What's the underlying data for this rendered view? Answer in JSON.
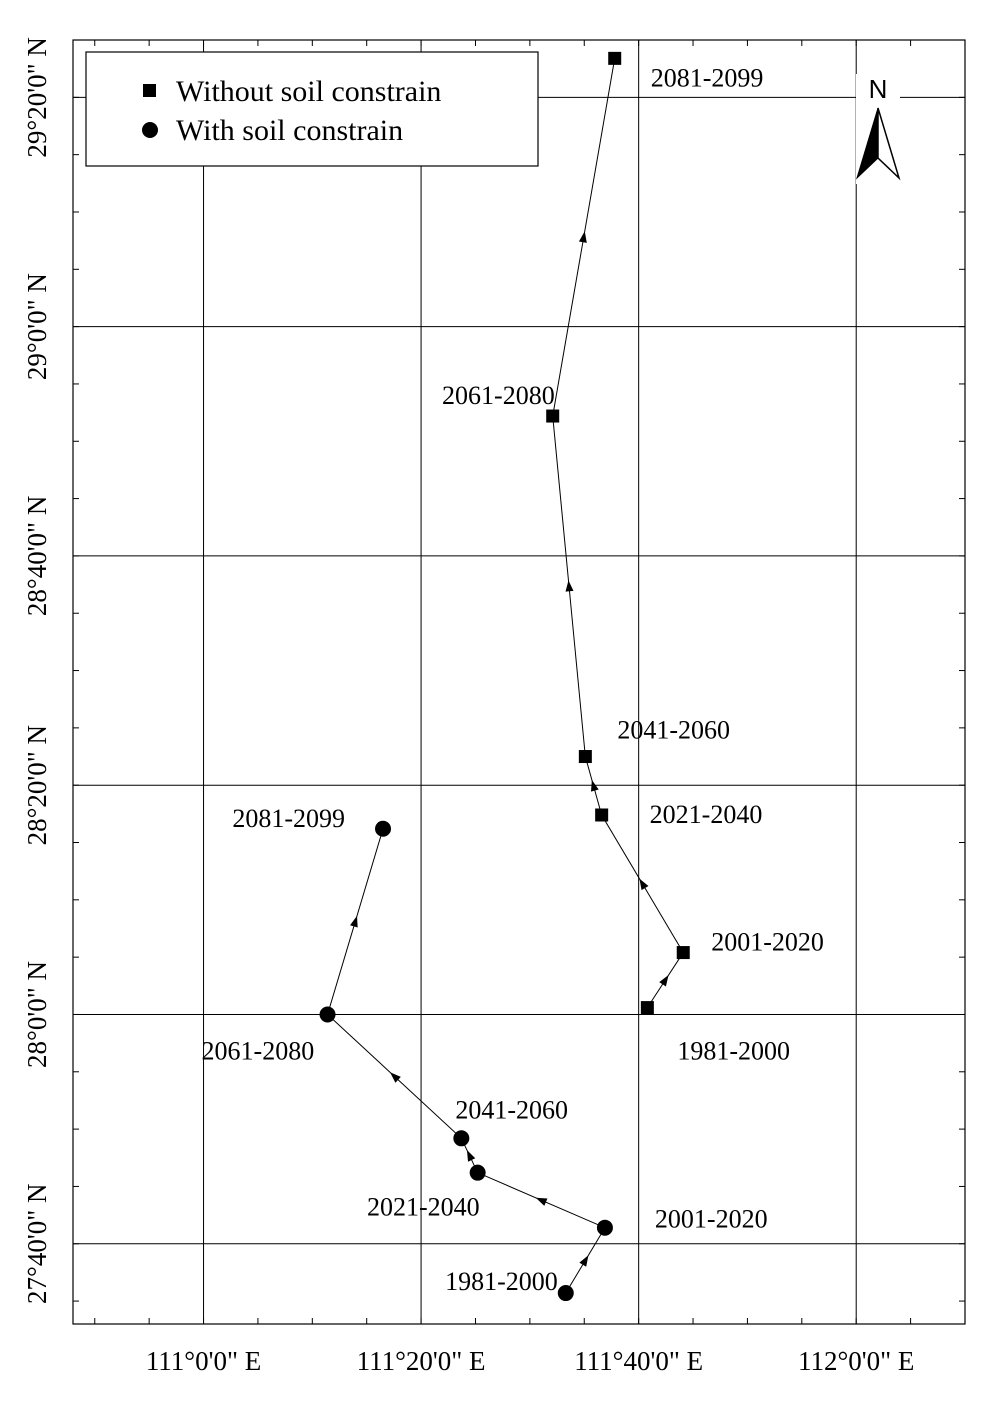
{
  "chart_data": {
    "type": "line",
    "title": "",
    "xlabel": "",
    "ylabel": "",
    "xlim": [
      110.8,
      112.1667
    ],
    "ylim": [
      27.55,
      29.4167
    ],
    "x_ticks": [
      {
        "value": 111.0,
        "label": "111°0'0\" E"
      },
      {
        "value": 111.3333,
        "label": "111°20'0\" E"
      },
      {
        "value": 111.6667,
        "label": "111°40'0\" E"
      },
      {
        "value": 112.0,
        "label": "112°0'0\" E"
      }
    ],
    "y_ticks": [
      {
        "value": 27.6667,
        "label": "27°40'0\" N"
      },
      {
        "value": 28.0,
        "label": "28°0'0\" N"
      },
      {
        "value": 28.3333,
        "label": "28°20'0\" N"
      },
      {
        "value": 28.6667,
        "label": "28°40'0\" N"
      },
      {
        "value": 29.0,
        "label": "29°0'0\" N"
      },
      {
        "value": 29.3333,
        "label": "29°20'0\" N"
      }
    ],
    "grid": true,
    "legend_position": "top-left",
    "north_arrow_label": "N",
    "series": [
      {
        "name": "Without soil constrain",
        "marker": "square",
        "points": [
          {
            "label": "1981-2000",
            "x": 111.68,
            "y": 28.01
          },
          {
            "label": "2001-2020",
            "x": 111.735,
            "y": 28.09
          },
          {
            "label": "2021-2040",
            "x": 111.61,
            "y": 28.29
          },
          {
            "label": "2041-2060",
            "x": 111.585,
            "y": 28.375
          },
          {
            "label": "2061-2080",
            "x": 111.535,
            "y": 28.87
          },
          {
            "label": "2081-2099",
            "x": 111.63,
            "y": 29.39
          }
        ]
      },
      {
        "name": "With soil constrain",
        "marker": "circle",
        "points": [
          {
            "label": "1981-2000",
            "x": 111.555,
            "y": 27.595
          },
          {
            "label": "2001-2020",
            "x": 111.615,
            "y": 27.69
          },
          {
            "label": "2021-2040",
            "x": 111.42,
            "y": 27.77
          },
          {
            "label": "2041-2060",
            "x": 111.395,
            "y": 27.82
          },
          {
            "label": "2061-2080",
            "x": 111.19,
            "y": 28.0
          },
          {
            "label": "2081-2099",
            "x": 111.275,
            "y": 28.27
          }
        ]
      }
    ]
  }
}
